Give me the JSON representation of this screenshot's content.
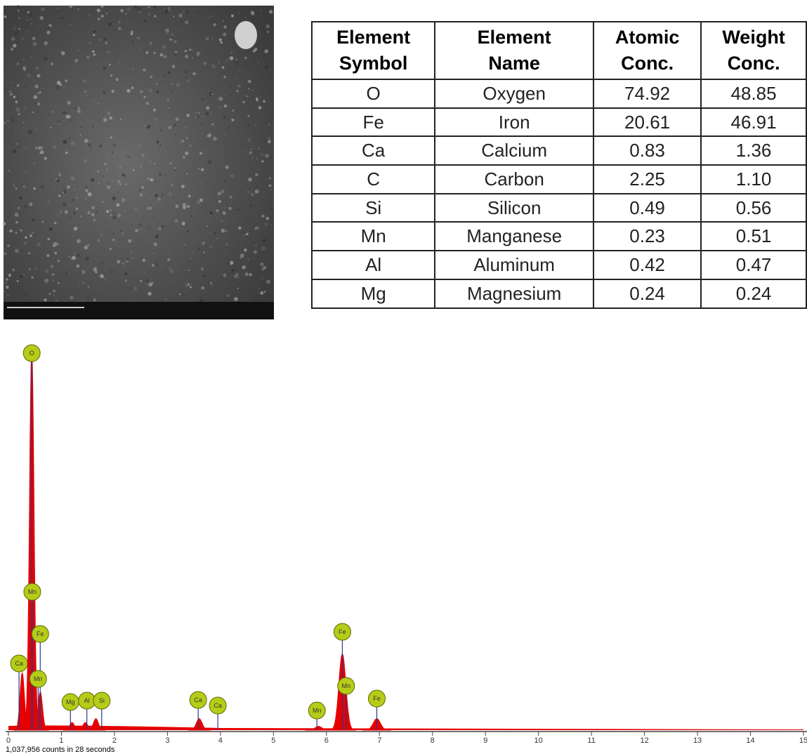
{
  "table": {
    "header": [
      [
        "Element",
        "Symbol"
      ],
      [
        "Element",
        "Name"
      ],
      [
        "Atomic",
        "Conc."
      ],
      [
        "Weight",
        "Conc."
      ]
    ],
    "rows": [
      [
        "O",
        "Oxygen",
        "74.92",
        "48.85"
      ],
      [
        "Fe",
        "Iron",
        "20.61",
        "46.91"
      ],
      [
        "Ca",
        "Calcium",
        "0.83",
        "1.36"
      ],
      [
        "C",
        "Carbon",
        "2.25",
        "1.10"
      ],
      [
        "Si",
        "Silicon",
        "0.49",
        "0.56"
      ],
      [
        "Mn",
        "Manganese",
        "0.23",
        "0.51"
      ],
      [
        "Al",
        "Aluminum",
        "0.42",
        "0.47"
      ],
      [
        "Mg",
        "Magnesium",
        "0.24",
        "0.24"
      ]
    ]
  },
  "chart_data": {
    "type": "spectrum",
    "xlim": [
      0,
      15
    ],
    "xticks": [
      0,
      1,
      2,
      3,
      4,
      5,
      6,
      7,
      8,
      9,
      10,
      11,
      12,
      13,
      14,
      15
    ],
    "color": "#e60000",
    "peaks": [
      {
        "energy": 0.26,
        "intensity": 0.15
      },
      {
        "energy": 0.44,
        "intensity": 1.0
      },
      {
        "energy": 0.6,
        "intensity": 0.1
      },
      {
        "energy": 1.2,
        "intensity": 0.02
      },
      {
        "energy": 1.45,
        "intensity": 0.02
      },
      {
        "energy": 1.65,
        "intensity": 0.03
      },
      {
        "energy": 3.6,
        "intensity": 0.03
      },
      {
        "energy": 5.85,
        "intensity": 0.01
      },
      {
        "energy": 6.3,
        "intensity": 0.2
      },
      {
        "energy": 6.95,
        "intensity": 0.03
      }
    ],
    "markers": [
      {
        "label": "O",
        "energy": 0.44
      },
      {
        "label": "Mn",
        "energy": 0.45
      },
      {
        "label": "Fe",
        "energy": 0.6
      },
      {
        "label": "Ca",
        "energy": 0.2
      },
      {
        "label": "Mn",
        "energy": 0.56
      },
      {
        "label": "Mg",
        "energy": 1.17
      },
      {
        "label": "Al",
        "energy": 1.48
      },
      {
        "label": "Si",
        "energy": 1.76
      },
      {
        "label": "Ca",
        "energy": 3.58
      },
      {
        "label": "Ca",
        "energy": 3.95
      },
      {
        "label": "Mn",
        "energy": 5.82
      },
      {
        "label": "Fe",
        "energy": 6.3
      },
      {
        "label": "Mn",
        "energy": 6.37
      },
      {
        "label": "Fe",
        "energy": 6.95
      }
    ],
    "footer": "1,037,956 counts in 28 seconds"
  }
}
